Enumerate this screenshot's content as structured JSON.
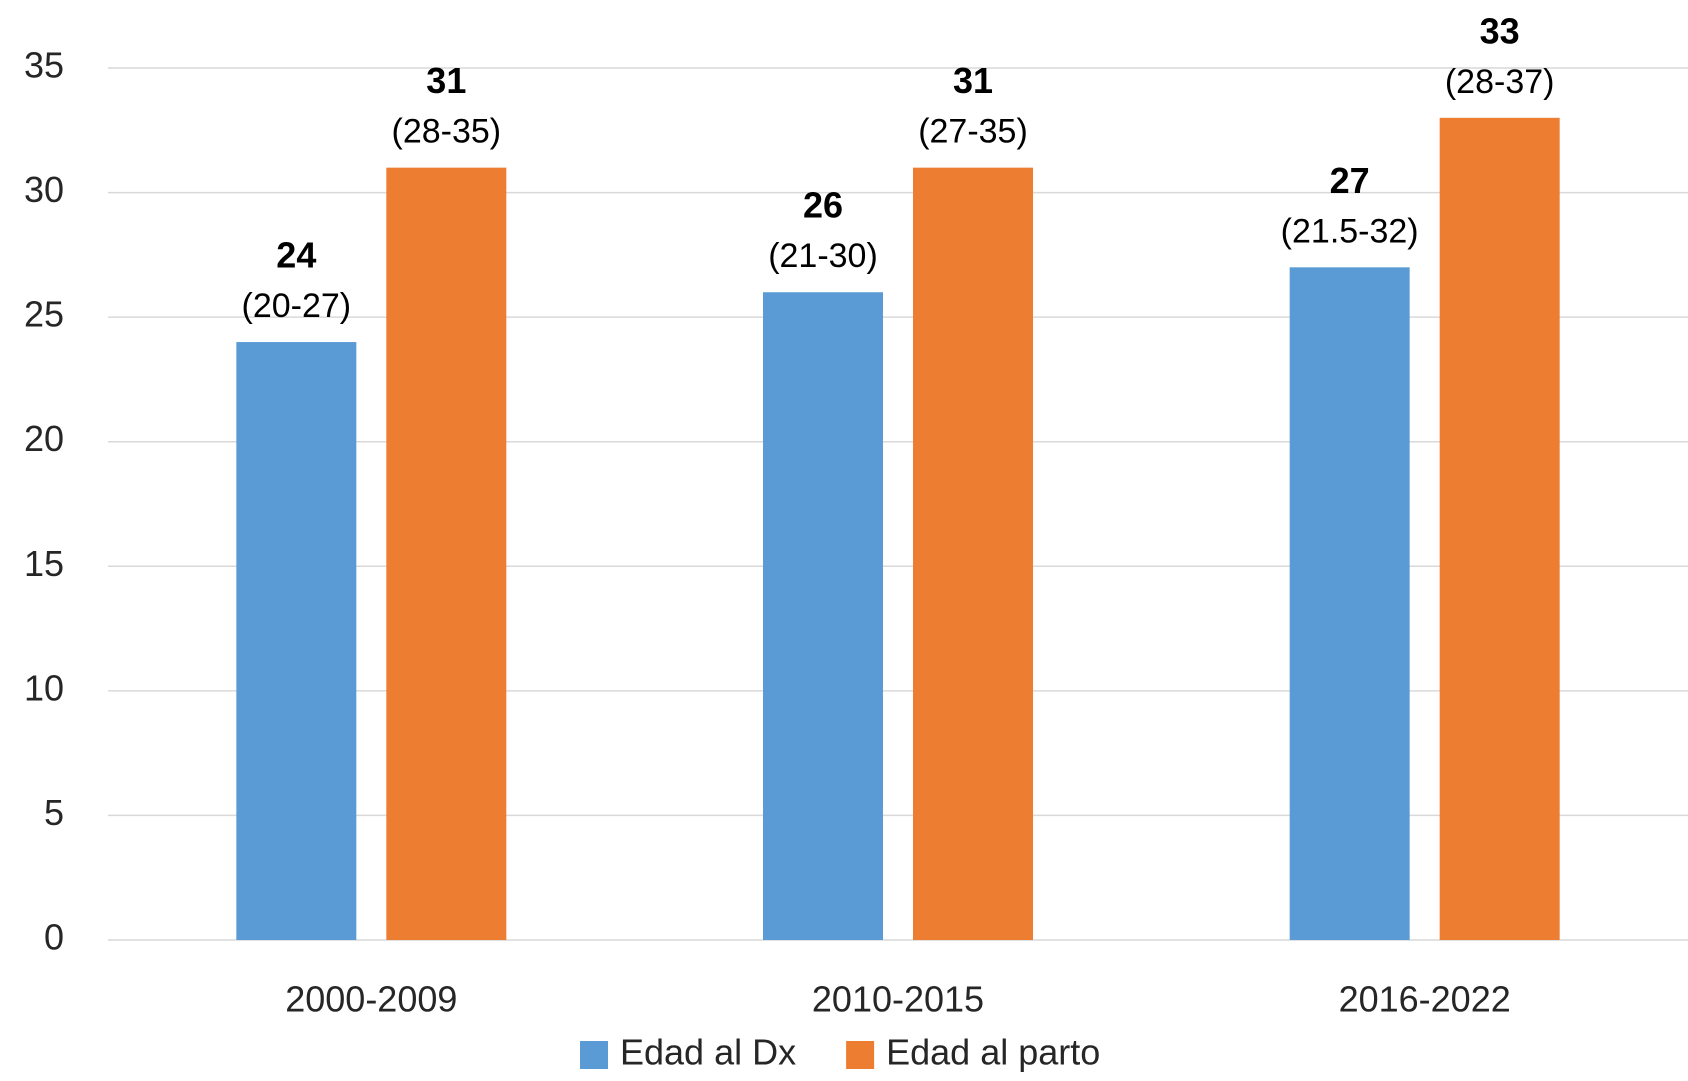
{
  "chart_data": {
    "type": "bar",
    "categories": [
      "2000-2009",
      "2010-2015",
      "2016-2022"
    ],
    "series": [
      {
        "name": "Edad al Dx",
        "color": "#5b9bd5",
        "values": [
          24,
          26,
          27
        ],
        "ranges": [
          "(20-27)",
          "(21-30)",
          "(21.5-32)"
        ]
      },
      {
        "name": "Edad al parto",
        "color": "#ed7d31",
        "values": [
          31,
          31,
          33
        ],
        "ranges": [
          "(28-35)",
          "(27-35)",
          "(28-37)"
        ]
      }
    ],
    "ylim": [
      0,
      35
    ],
    "yticks": [
      0,
      5,
      10,
      15,
      20,
      25,
      30,
      35
    ],
    "grid": true,
    "legend": "bottom"
  }
}
